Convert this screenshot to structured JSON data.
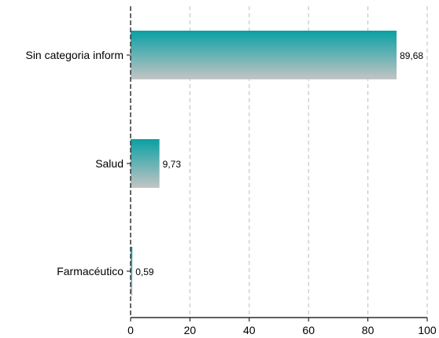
{
  "chart_data": {
    "type": "bar",
    "orientation": "horizontal",
    "categories": [
      "Sin categoria inform",
      "Salud",
      "Farmacéutico"
    ],
    "values": [
      89.68,
      9.73,
      0.59
    ],
    "value_labels": [
      "89,68",
      "9,73",
      "0,59"
    ],
    "xlim": [
      0,
      100
    ],
    "xticks": [
      0,
      20,
      40,
      60,
      80,
      100
    ],
    "xtick_labels": [
      "0",
      "20",
      "40",
      "60",
      "80",
      "100"
    ],
    "grid": "vertical-dashed",
    "bar_gradient": [
      "#0aa0a4",
      "#c4c4c4"
    ],
    "title": "",
    "xlabel": "",
    "ylabel": ""
  }
}
